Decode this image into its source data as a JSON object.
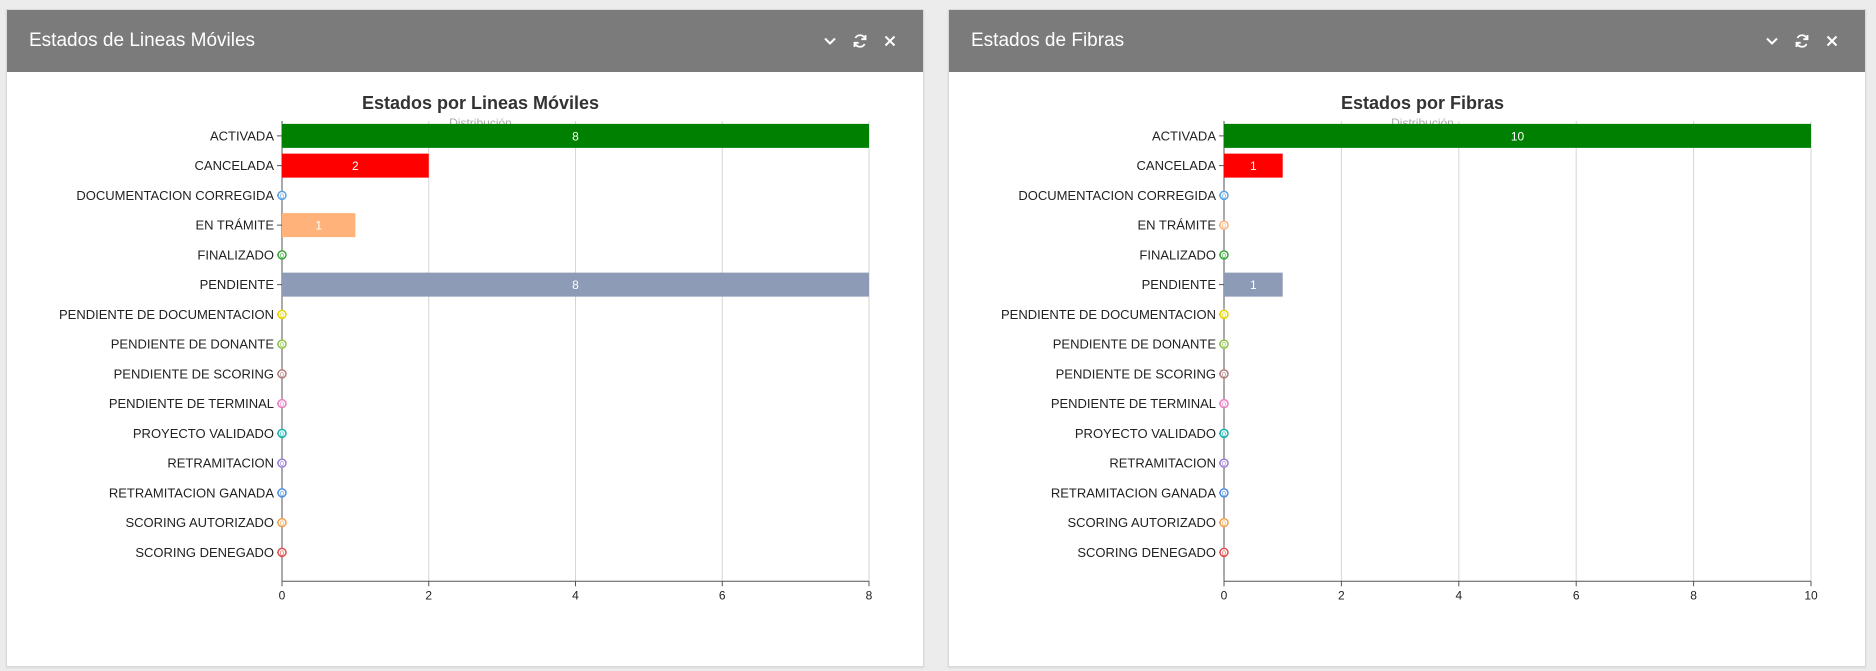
{
  "panels": [
    {
      "header_title": "Estados de Lineas Móviles",
      "icons": [
        "chevron-down-icon",
        "refresh-icon",
        "close-icon"
      ],
      "chart_data": {
        "type": "bar",
        "orientation": "horizontal",
        "title": "Estados por Lineas Móviles",
        "subtitle": "Distribución",
        "categories": [
          "ACTIVADA",
          "CANCELADA",
          "DOCUMENTACION CORREGIDA",
          "EN TRÁMITE",
          "FINALIZADO",
          "PENDIENTE",
          "PENDIENTE DE DOCUMENTACION",
          "PENDIENTE DE DONANTE",
          "PENDIENTE DE SCORING",
          "PENDIENTE DE TERMINAL",
          "PROYECTO VALIDADO",
          "RETRAMITACION",
          "RETRAMITACION GANADA",
          "SCORING AUTORIZADO",
          "SCORING DENEGADO"
        ],
        "values": [
          8,
          2,
          0,
          1,
          0,
          8,
          0,
          0,
          0,
          0,
          0,
          0,
          0,
          0,
          0
        ],
        "colors": [
          "#008000",
          "#ff0000",
          "#5ba3e0",
          "#ffb27a",
          "#3aa63a",
          "#8d9bb7",
          "#e6d400",
          "#8fc34a",
          "#b07d7d",
          "#e87fc4",
          "#18b0b0",
          "#9b7fd4",
          "#4f8fe0",
          "#f0a050",
          "#e05050"
        ],
        "xlim": [
          0,
          8
        ],
        "xticks": [
          "0",
          "2",
          "4",
          "6",
          "8"
        ],
        "grid": true,
        "legend": false
      }
    },
    {
      "header_title": "Estados de Fibras",
      "icons": [
        "chevron-down-icon",
        "refresh-icon",
        "close-icon"
      ],
      "chart_data": {
        "type": "bar",
        "orientation": "horizontal",
        "title": "Estados por Fibras",
        "subtitle": "Distribución",
        "categories": [
          "ACTIVADA",
          "CANCELADA",
          "DOCUMENTACION CORREGIDA",
          "EN TRÁMITE",
          "FINALIZADO",
          "PENDIENTE",
          "PENDIENTE DE DOCUMENTACION",
          "PENDIENTE DE DONANTE",
          "PENDIENTE DE SCORING",
          "PENDIENTE DE TERMINAL",
          "PROYECTO VALIDADO",
          "RETRAMITACION",
          "RETRAMITACION GANADA",
          "SCORING AUTORIZADO",
          "SCORING DENEGADO"
        ],
        "values": [
          10,
          1,
          0,
          0,
          0,
          1,
          0,
          0,
          0,
          0,
          0,
          0,
          0,
          0,
          0
        ],
        "colors": [
          "#008000",
          "#ff0000",
          "#5ba3e0",
          "#ffb27a",
          "#3aa63a",
          "#8d9bb7",
          "#e6d400",
          "#8fc34a",
          "#b07d7d",
          "#e87fc4",
          "#18b0b0",
          "#9b7fd4",
          "#4f8fe0",
          "#f0a050",
          "#e05050"
        ],
        "xlim": [
          0,
          10
        ],
        "xticks": [
          "0",
          "2",
          "4",
          "6",
          "8",
          "10"
        ],
        "grid": true,
        "legend": false
      }
    }
  ]
}
